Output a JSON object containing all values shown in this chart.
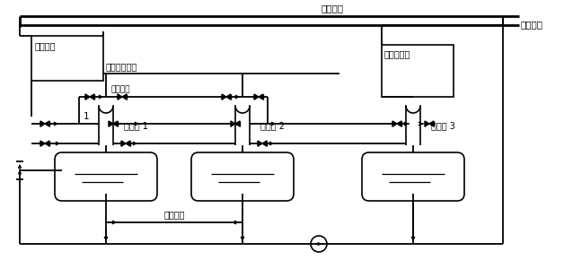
{
  "bg_color": "#ffffff",
  "labels": {
    "steam_main": "蒸汽母管",
    "factory_steam": "厂用蒸汽",
    "soft_water": "软水母管",
    "high_pressure": "高压软水母管",
    "steam_balance": "汽平衡管",
    "condensate": "凝结水母管",
    "water_balance": "水平衡管",
    "deaerator1": "除氧器 1",
    "deaerator2": "除氧器 2",
    "deaerator3": "除氧器 3",
    "num1": "1"
  },
  "figsize": [
    6.28,
    3.0
  ],
  "dpi": 100
}
